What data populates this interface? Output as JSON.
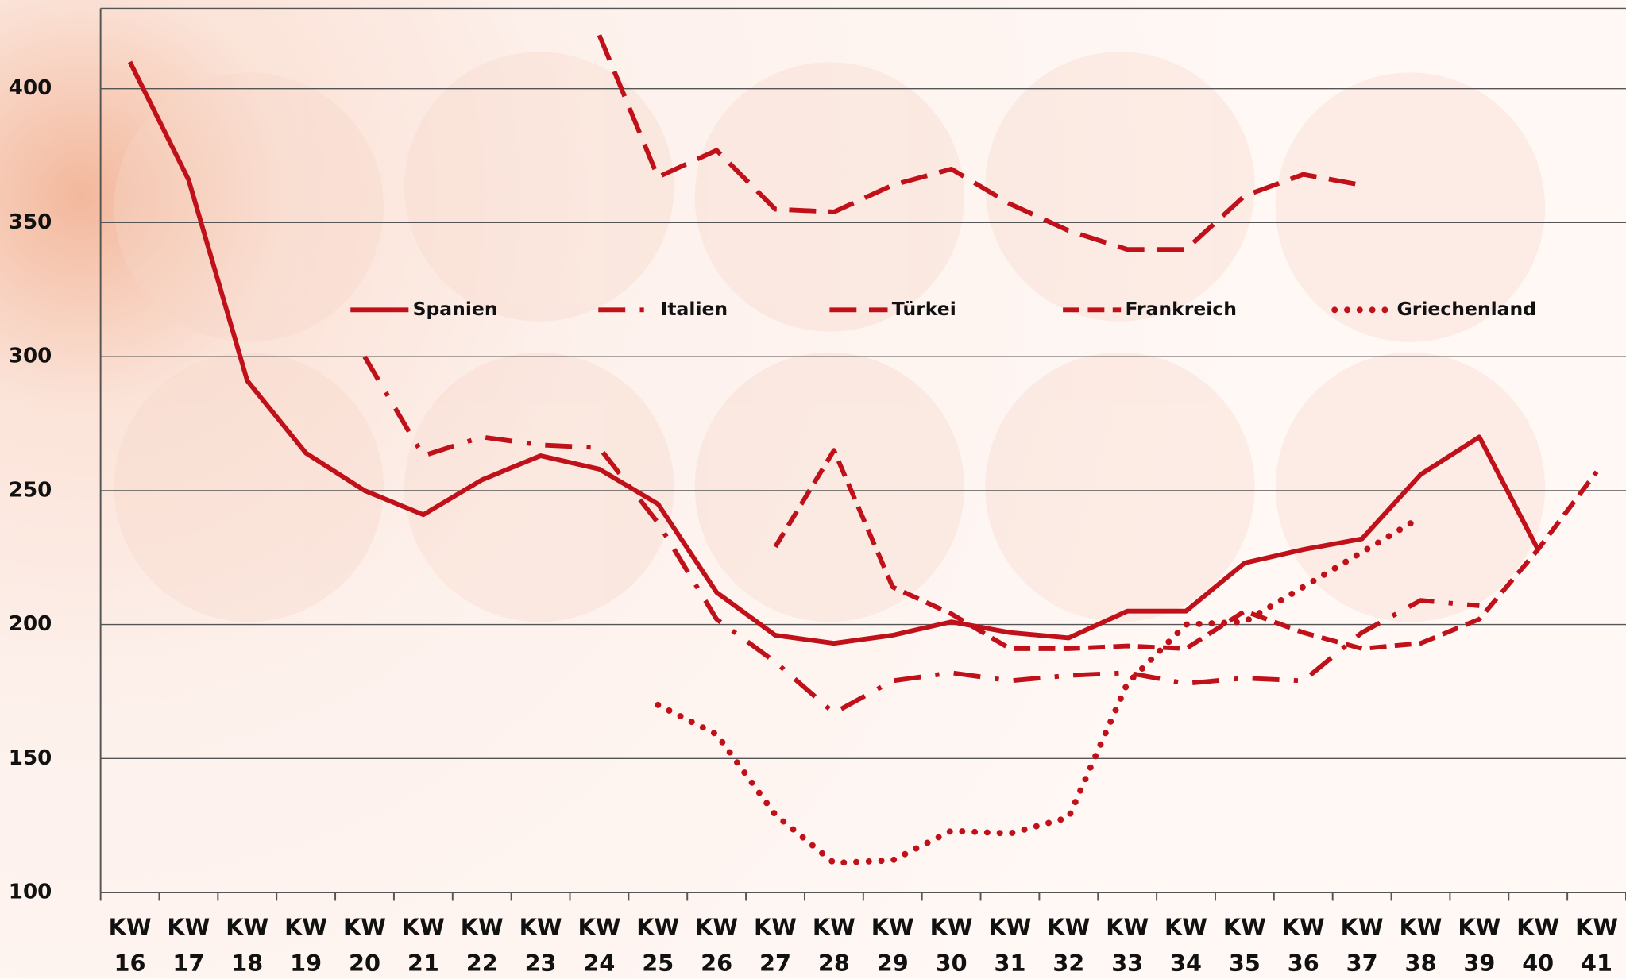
{
  "chart_data": {
    "type": "line",
    "categories": [
      "KW 16",
      "KW 17",
      "KW 18",
      "KW 19",
      "KW 20",
      "KW 21",
      "KW 22",
      "KW 23",
      "KW 24",
      "KW 25",
      "KW 26",
      "KW 27",
      "KW 28",
      "KW 29",
      "KW 30",
      "KW 31",
      "KW 32",
      "KW 33",
      "KW 34",
      "KW 35",
      "KW 36",
      "KW 37",
      "KW 38",
      "KW 39",
      "KW 40",
      "KW 41"
    ],
    "series": [
      {
        "name": "Spanien",
        "color": "#c0111b",
        "dash": "solid",
        "values": [
          410,
          366,
          291,
          264,
          250,
          241,
          254,
          263,
          258,
          245,
          212,
          196,
          193,
          196,
          201,
          197,
          195,
          205,
          205,
          223,
          228,
          232,
          256,
          270,
          228,
          null
        ]
      },
      {
        "name": "Italien",
        "color": "#c0111b",
        "dash": "dash-dot",
        "values": [
          null,
          null,
          null,
          null,
          300,
          263,
          270,
          267,
          266,
          238,
          202,
          186,
          167,
          179,
          182,
          179,
          181,
          182,
          178,
          180,
          179,
          197,
          209,
          207,
          null,
          null
        ]
      },
      {
        "name": "Türkei",
        "color": "#c0111b",
        "dash": "long-dash",
        "values": [
          null,
          null,
          null,
          null,
          null,
          null,
          null,
          null,
          420,
          367,
          377,
          355,
          354,
          364,
          370,
          357,
          347,
          340,
          340,
          360,
          368,
          364,
          null,
          null,
          null,
          null
        ]
      },
      {
        "name": "Frankreich",
        "color": "#c0111b",
        "dash": "dash",
        "values": [
          null,
          null,
          null,
          null,
          null,
          null,
          null,
          null,
          null,
          null,
          null,
          229,
          265,
          214,
          204,
          191,
          191,
          192,
          191,
          205,
          197,
          191,
          193,
          202,
          228,
          257
        ]
      },
      {
        "name": "Griechenland",
        "color": "#c0111b",
        "dash": "dot",
        "values": [
          null,
          null,
          null,
          null,
          null,
          null,
          null,
          null,
          null,
          170,
          159,
          129,
          111,
          112,
          123,
          122,
          128,
          178,
          200,
          201,
          214,
          227,
          240,
          null,
          null,
          null
        ]
      }
    ],
    "ylim": [
      100,
      430
    ],
    "yticks": [
      100,
      150,
      200,
      250,
      300,
      350,
      400
    ],
    "grid": true,
    "legend": "top"
  }
}
